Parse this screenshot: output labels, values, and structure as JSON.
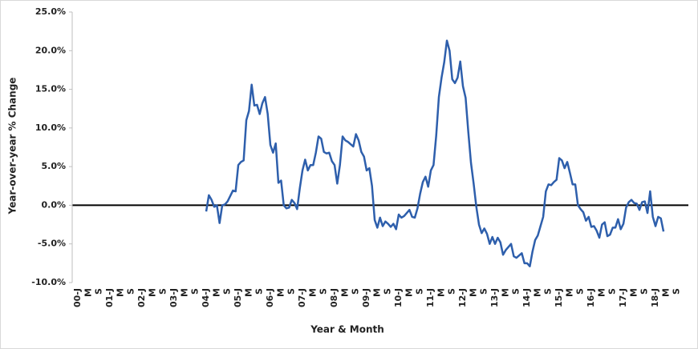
{
  "chart_data": {
    "type": "line",
    "y_label": "Year-over-year % Change",
    "x_label": "Year & Month",
    "categories": [
      "00-J",
      null,
      null,
      null,
      "M",
      null,
      null,
      null,
      "S",
      null,
      null,
      null,
      "01-J",
      null,
      null,
      null,
      "M",
      null,
      null,
      null,
      "S",
      null,
      null,
      null,
      "02-J",
      null,
      null,
      null,
      "M",
      null,
      null,
      null,
      "S",
      null,
      null,
      null,
      "03-J",
      null,
      null,
      null,
      "M",
      null,
      null,
      null,
      "S",
      null,
      null,
      null,
      "04-J",
      null,
      null,
      null,
      "M",
      null,
      null,
      null,
      "S",
      null,
      null,
      null,
      "05-J",
      null,
      null,
      null,
      "M",
      null,
      null,
      null,
      "S",
      null,
      null,
      null,
      "06-J",
      null,
      null,
      null,
      "M",
      null,
      null,
      null,
      "S",
      null,
      null,
      null,
      "07-J",
      null,
      null,
      null,
      "M",
      null,
      null,
      null,
      "S",
      null,
      null,
      null,
      "08-J",
      null,
      null,
      null,
      "M",
      null,
      null,
      null,
      "S",
      null,
      null,
      null,
      "09-J",
      null,
      null,
      null,
      "M",
      null,
      null,
      null,
      "S",
      null,
      null,
      null,
      "10-J",
      null,
      null,
      null,
      "M",
      null,
      null,
      null,
      "S",
      null,
      null,
      null,
      "11-J",
      null,
      null,
      null,
      "M",
      null,
      null,
      null,
      "S",
      null,
      null,
      null,
      "12-J",
      null,
      null,
      null,
      "M",
      null,
      null,
      null,
      "S",
      null,
      null,
      null,
      "13-J",
      null,
      null,
      null,
      "M",
      null,
      null,
      null,
      "S",
      null,
      null,
      null,
      "14-J",
      null,
      null,
      null,
      "M",
      null,
      null,
      null,
      "S",
      null,
      null,
      null,
      "15-J",
      null,
      null,
      null,
      "M",
      null,
      null,
      null,
      "S",
      null,
      null,
      null,
      "16-J",
      null,
      null,
      null,
      "M",
      null,
      null,
      null,
      "S",
      null,
      null,
      null,
      "17-J",
      null,
      null,
      null,
      "M",
      null,
      null,
      null,
      "S",
      null,
      null,
      null,
      "18-J",
      null,
      null,
      null,
      "M",
      null,
      null,
      null,
      "S"
    ],
    "series": [
      {
        "color": "#2e5fac",
        "values": [
          null,
          null,
          null,
          null,
          null,
          null,
          null,
          null,
          null,
          null,
          null,
          null,
          null,
          null,
          null,
          null,
          null,
          null,
          null,
          null,
          null,
          null,
          null,
          null,
          null,
          null,
          null,
          null,
          null,
          null,
          null,
          null,
          null,
          null,
          null,
          null,
          null,
          null,
          null,
          null,
          null,
          null,
          null,
          null,
          null,
          null,
          null,
          null,
          -0.8,
          1.3,
          0.7,
          -0.2,
          0,
          -2.3,
          0,
          0.1,
          0.5,
          1.2,
          1.9,
          1.8,
          5.2,
          5.6,
          5.8,
          11,
          12.2,
          15.6,
          12.9,
          13,
          11.8,
          13.2,
          14,
          11.8,
          7.8,
          6.8,
          8,
          2.9,
          3.2,
          0,
          -0.4,
          -0.3,
          0.7,
          0.3,
          -0.5,
          2.2,
          4.5,
          5.9,
          4.5,
          5.2,
          5.2,
          6.8,
          8.9,
          8.6,
          6.9,
          6.7,
          6.8,
          5.7,
          5.2,
          2.8,
          5.2,
          8.9,
          8.4,
          8.2,
          7.9,
          7.6,
          9.2,
          8.4,
          6.9,
          6.3,
          4.5,
          4.8,
          2.5,
          -1.9,
          -2.9,
          -1.6,
          -2.7,
          -2.1,
          -2.4,
          -2.8,
          -2.4,
          -3.1,
          -1.2,
          -1.6,
          -1.4,
          -1,
          -0.6,
          -1.5,
          -1.6,
          -0.4,
          1.5,
          3,
          3.7,
          2.4,
          4.5,
          5.2,
          9,
          14,
          16.5,
          18.5,
          21.3,
          20,
          16.3,
          15.8,
          16.5,
          18.6,
          15.4,
          13.9,
          9.5,
          5.5,
          2.8,
          -0.2,
          -2.5,
          -3.6,
          -3,
          -3.7,
          -5,
          -4.1,
          -5,
          -4.2,
          -4.8,
          -6.4,
          -5.8,
          -5.4,
          -5,
          -6.6,
          -6.8,
          -6.5,
          -6.2,
          -7.5,
          -7.5,
          -7.9,
          -6,
          -4.5,
          -3.9,
          -2.7,
          -1.5,
          1.8,
          2.7,
          2.6,
          3,
          3.3,
          6.1,
          5.8,
          4.8,
          5.6,
          4.2,
          2.7,
          2.7,
          0,
          -0.5,
          -0.9,
          -2,
          -1.5,
          -2.8,
          -2.7,
          -3.3,
          -4.2,
          -2.5,
          -2.2,
          -4,
          -3.8,
          -2.9,
          -2.9,
          -1.8,
          -3.1,
          -2.4,
          -0.3,
          0.4,
          0.7,
          0.3,
          0.2,
          -0.6,
          0.4,
          0.5,
          -1,
          1.8,
          -1.5,
          -2.7,
          -1.5,
          -1.7,
          -3.4,
          null,
          null,
          null,
          null,
          null
        ]
      }
    ],
    "ylim": [
      -10,
      25
    ],
    "yticks": [
      {
        "value": -10,
        "label": "-10.0%"
      },
      {
        "value": -5,
        "label": "-5.0%"
      },
      {
        "value": 0,
        "label": "0.0%"
      },
      {
        "value": 5,
        "label": "5.0%"
      },
      {
        "value": 10,
        "label": "10.0%"
      },
      {
        "value": 15,
        "label": "15.0%"
      },
      {
        "value": 20,
        "label": "20.0%"
      },
      {
        "value": 25,
        "label": "25.0%"
      }
    ],
    "grid": false
  }
}
